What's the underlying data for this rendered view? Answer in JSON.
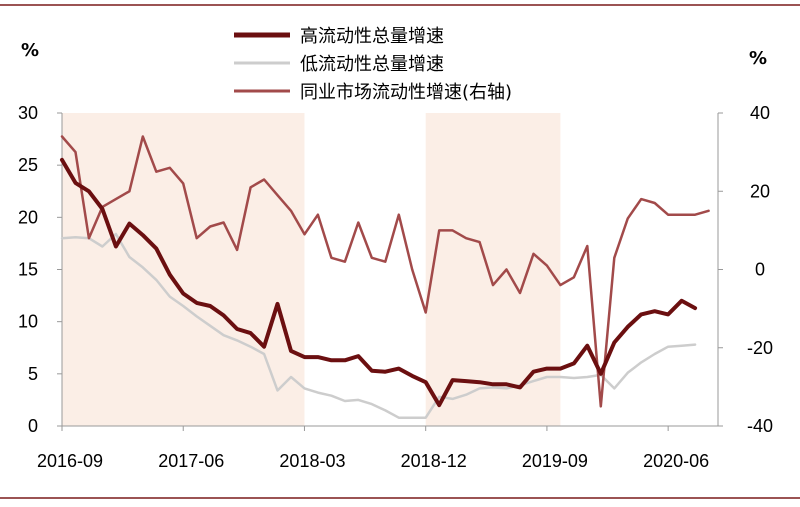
{
  "chart_data": {
    "type": "line",
    "left_unit": "%",
    "right_unit": "%",
    "x_tick_labels": [
      "2016-09",
      "2017-06",
      "2018-03",
      "2018-12",
      "2019-09",
      "2020-06"
    ],
    "y_left": {
      "ticks": [
        "30",
        "25",
        "20",
        "15",
        "10",
        "5",
        "0"
      ],
      "lim": [
        0,
        30
      ]
    },
    "y_right": {
      "ticks": [
        "40",
        "20",
        "0",
        "-20",
        "-40"
      ],
      "lim": [
        -40,
        40
      ]
    },
    "shaded_periods": [
      [
        "2016-09",
        "2018-03"
      ],
      [
        "2018-12",
        "2019-10"
      ]
    ],
    "colors": {
      "high": "#6b0f10",
      "low": "#cdcdcd",
      "peer": "#a24a4a",
      "shade": "#fbeee6",
      "frame": "#7a1a1a"
    },
    "series": [
      {
        "name": "高流动性总量增速",
        "axis": "left",
        "points": [
          [
            "2016-09",
            25.5
          ],
          [
            "2016-10",
            23.3
          ],
          [
            "2016-11",
            22.5
          ],
          [
            "2016-12",
            20.8
          ],
          [
            "2017-01",
            17.2
          ],
          [
            "2017-02",
            19.4
          ],
          [
            "2017-03",
            18.3
          ],
          [
            "2017-04",
            17.0
          ],
          [
            "2017-05",
            14.5
          ],
          [
            "2017-06",
            12.7
          ],
          [
            "2017-07",
            11.8
          ],
          [
            "2017-08",
            11.5
          ],
          [
            "2017-09",
            10.6
          ],
          [
            "2017-10",
            9.3
          ],
          [
            "2017-11",
            8.9
          ],
          [
            "2017-12",
            7.6
          ],
          [
            "2018-01",
            11.7
          ],
          [
            "2018-02",
            7.2
          ],
          [
            "2018-03",
            6.6
          ],
          [
            "2018-04",
            6.6
          ],
          [
            "2018-05",
            6.3
          ],
          [
            "2018-06",
            6.3
          ],
          [
            "2018-07",
            6.7
          ],
          [
            "2018-08",
            5.3
          ],
          [
            "2018-09",
            5.2
          ],
          [
            "2018-10",
            5.5
          ],
          [
            "2018-11",
            4.8
          ],
          [
            "2018-12",
            4.2
          ],
          [
            "2019-01",
            2.0
          ],
          [
            "2019-02",
            4.4
          ],
          [
            "2019-03",
            4.3
          ],
          [
            "2019-04",
            4.2
          ],
          [
            "2019-05",
            4.0
          ],
          [
            "2019-06",
            4.0
          ],
          [
            "2019-07",
            3.7
          ],
          [
            "2019-08",
            5.2
          ],
          [
            "2019-09",
            5.5
          ],
          [
            "2019-10",
            5.5
          ],
          [
            "2019-11",
            6.0
          ],
          [
            "2019-12",
            7.7
          ],
          [
            "2020-01",
            5.0
          ],
          [
            "2020-02",
            8.0
          ],
          [
            "2020-03",
            9.5
          ],
          [
            "2020-04",
            10.7
          ],
          [
            "2020-05",
            11.0
          ],
          [
            "2020-06",
            10.7
          ],
          [
            "2020-07",
            12.0
          ],
          [
            "2020-08",
            11.3
          ]
        ]
      },
      {
        "name": "低流动性总量增速",
        "axis": "left",
        "points": [
          [
            "2016-09",
            18.0
          ],
          [
            "2016-10",
            18.1
          ],
          [
            "2016-11",
            18.0
          ],
          [
            "2016-12",
            17.2
          ],
          [
            "2017-01",
            18.4
          ],
          [
            "2017-02",
            16.2
          ],
          [
            "2017-03",
            15.2
          ],
          [
            "2017-04",
            14.0
          ],
          [
            "2017-05",
            12.4
          ],
          [
            "2017-06",
            11.5
          ],
          [
            "2017-07",
            10.5
          ],
          [
            "2017-08",
            9.6
          ],
          [
            "2017-09",
            8.7
          ],
          [
            "2017-10",
            8.2
          ],
          [
            "2017-11",
            7.6
          ],
          [
            "2017-12",
            6.9
          ],
          [
            "2018-01",
            3.4
          ],
          [
            "2018-02",
            4.7
          ],
          [
            "2018-03",
            3.6
          ],
          [
            "2018-04",
            3.2
          ],
          [
            "2018-05",
            2.9
          ],
          [
            "2018-06",
            2.4
          ],
          [
            "2018-07",
            2.5
          ],
          [
            "2018-08",
            2.1
          ],
          [
            "2018-09",
            1.5
          ],
          [
            "2018-10",
            0.8
          ],
          [
            "2018-11",
            0.8
          ],
          [
            "2018-12",
            0.8
          ],
          [
            "2019-01",
            2.8
          ],
          [
            "2019-02",
            2.6
          ],
          [
            "2019-03",
            3.0
          ],
          [
            "2019-04",
            3.6
          ],
          [
            "2019-05",
            3.7
          ],
          [
            "2019-06",
            3.6
          ],
          [
            "2019-07",
            3.9
          ],
          [
            "2019-08",
            4.3
          ],
          [
            "2019-09",
            4.7
          ],
          [
            "2019-10",
            4.7
          ],
          [
            "2019-11",
            4.6
          ],
          [
            "2019-12",
            4.7
          ],
          [
            "2020-01",
            4.9
          ],
          [
            "2020-02",
            3.6
          ],
          [
            "2020-03",
            5.1
          ],
          [
            "2020-04",
            6.1
          ],
          [
            "2020-05",
            6.9
          ],
          [
            "2020-06",
            7.6
          ],
          [
            "2020-07",
            7.7
          ],
          [
            "2020-08",
            7.8
          ]
        ]
      },
      {
        "name": "同业市场流动性增速(右轴)",
        "axis": "right",
        "points": [
          [
            "2016-09",
            34
          ],
          [
            "2016-10",
            30
          ],
          [
            "2016-11",
            8
          ],
          [
            "2016-12",
            16
          ],
          [
            "2017-01",
            18
          ],
          [
            "2017-02",
            20
          ],
          [
            "2017-03",
            34
          ],
          [
            "2017-04",
            25
          ],
          [
            "2017-05",
            26
          ],
          [
            "2017-06",
            22
          ],
          [
            "2017-07",
            8
          ],
          [
            "2017-08",
            11
          ],
          [
            "2017-09",
            12
          ],
          [
            "2017-10",
            5
          ],
          [
            "2017-11",
            21
          ],
          [
            "2017-12",
            23
          ],
          [
            "2018-01",
            19
          ],
          [
            "2018-02",
            15
          ],
          [
            "2018-03",
            9
          ],
          [
            "2018-04",
            14
          ],
          [
            "2018-05",
            3
          ],
          [
            "2018-06",
            2
          ],
          [
            "2018-07",
            12
          ],
          [
            "2018-08",
            3
          ],
          [
            "2018-09",
            2
          ],
          [
            "2018-10",
            14
          ],
          [
            "2018-11",
            0
          ],
          [
            "2018-12",
            -11
          ],
          [
            "2019-01",
            10
          ],
          [
            "2019-02",
            10
          ],
          [
            "2019-03",
            8
          ],
          [
            "2019-04",
            7
          ],
          [
            "2019-05",
            -4
          ],
          [
            "2019-06",
            0
          ],
          [
            "2019-07",
            -6
          ],
          [
            "2019-08",
            4
          ],
          [
            "2019-09",
            1
          ],
          [
            "2019-10",
            -4
          ],
          [
            "2019-11",
            -2
          ],
          [
            "2019-12",
            6
          ],
          [
            "2020-01",
            -35
          ],
          [
            "2020-02",
            3
          ],
          [
            "2020-03",
            13
          ],
          [
            "2020-04",
            18
          ],
          [
            "2020-05",
            17
          ],
          [
            "2020-06",
            14
          ],
          [
            "2020-07",
            14
          ],
          [
            "2020-08",
            14
          ],
          [
            "2020-09",
            15
          ]
        ]
      }
    ]
  }
}
